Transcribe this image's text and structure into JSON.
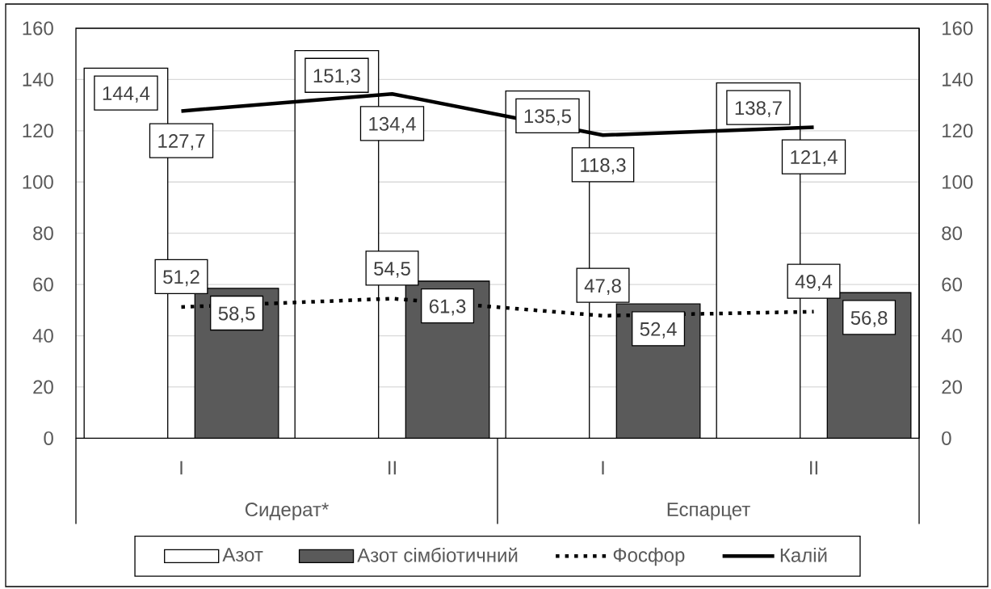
{
  "chart_data": {
    "type": "bar",
    "categories": [
      "I",
      "II",
      "I",
      "II"
    ],
    "series": [
      {
        "name": "Азот",
        "color": "#ffffff",
        "values": [
          144.4,
          151.3,
          135.5,
          138.7
        ],
        "value_labels": [
          "144,4",
          "151,3",
          "135,5",
          "138,7"
        ]
      },
      {
        "name": "Азот сімбіотичний",
        "color": "#5a5a5a",
        "values": [
          58.5,
          61.3,
          52.4,
          56.8
        ],
        "value_labels": [
          "58,5",
          "61,3",
          "52,4",
          "56,8"
        ]
      },
      {
        "name": "Фосфор",
        "type": "line",
        "color": "#000000",
        "line_style": "dotted",
        "values": [
          51.2,
          54.5,
          47.8,
          49.4
        ],
        "value_labels": [
          "51,2",
          "54,5",
          "47,8",
          "49,4"
        ]
      },
      {
        "name": "Калій",
        "type": "line",
        "color": "#000000",
        "line_style": "solid",
        "values": [
          127.7,
          134.4,
          118.3,
          121.4
        ],
        "value_labels": [
          "127,7",
          "134,4",
          "118,3",
          "121,4"
        ]
      }
    ],
    "ylim": [
      0,
      160
    ],
    "yticks": [
      0,
      20,
      40,
      60,
      80,
      100,
      120,
      140,
      160
    ],
    "y2lim": [
      0,
      160
    ],
    "y2ticks": [
      0,
      20,
      40,
      60,
      80,
      100,
      120,
      140,
      160
    ],
    "grid": "y",
    "legend": "bottom",
    "annotations": [
      "Сидерат*",
      "Еспарцет"
    ]
  }
}
